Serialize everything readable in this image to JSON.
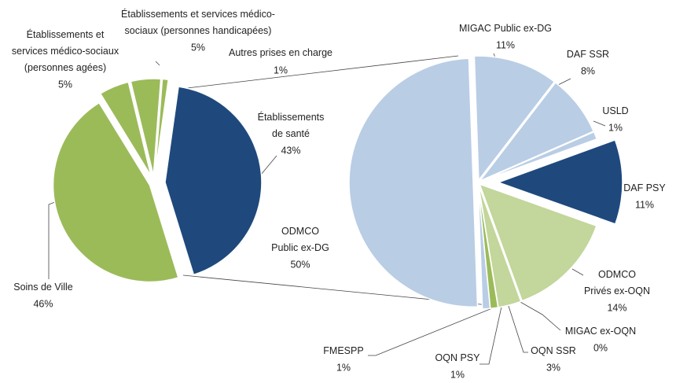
{
  "chart_data": [
    {
      "type": "pie",
      "categories": [
        "Établissements\nde santé",
        "Soins de Ville",
        "Établissements et\nservices médico-sociaux\n(personnes agées)",
        "Établissements et services médico-\nsociaux (personnes handicapées)",
        "Autres prises en charge"
      ],
      "values": [
        43,
        46,
        5,
        5,
        1
      ],
      "value_labels": [
        "43%",
        "46%",
        "5%",
        "5%",
        "1%"
      ],
      "colors": [
        "#1f497d",
        "#9bbb59",
        "#9bbb59",
        "#9bbb59",
        "#9bbb59"
      ],
      "label_colors": [
        "#222222",
        "#222222",
        "#222222",
        "#222222",
        "#222222"
      ]
    },
    {
      "type": "pie",
      "categories": [
        "ODMCO\nPublic ex-DG",
        "MIGAC Public ex-DG",
        "DAF SSR",
        "USLD",
        "DAF PSY",
        "ODMCO\nPrivés ex-OQN",
        "MIGAC ex-OQN",
        "OQN SSR",
        "OQN PSY",
        "FMESPP"
      ],
      "values": [
        50,
        11,
        8,
        1,
        11,
        14,
        0,
        3,
        1,
        1
      ],
      "value_labels": [
        "50%",
        "11%",
        "8%",
        "1%",
        "11%",
        "14%",
        "0%",
        "3%",
        "1%",
        "1%"
      ],
      "colors": [
        "#b9cde5",
        "#b9cde5",
        "#b9cde5",
        "#b9cde5",
        "#1f497d",
        "#c3d69b",
        "#c3d69b",
        "#c3d69b",
        "#9bbb59",
        "#b9cde5"
      ],
      "label_colors": [
        "#222222",
        "#222222",
        "#222222",
        "#222222",
        "#e8211d",
        "#222222",
        "#222222",
        "#222222",
        "#e8211d",
        "#222222"
      ]
    }
  ]
}
